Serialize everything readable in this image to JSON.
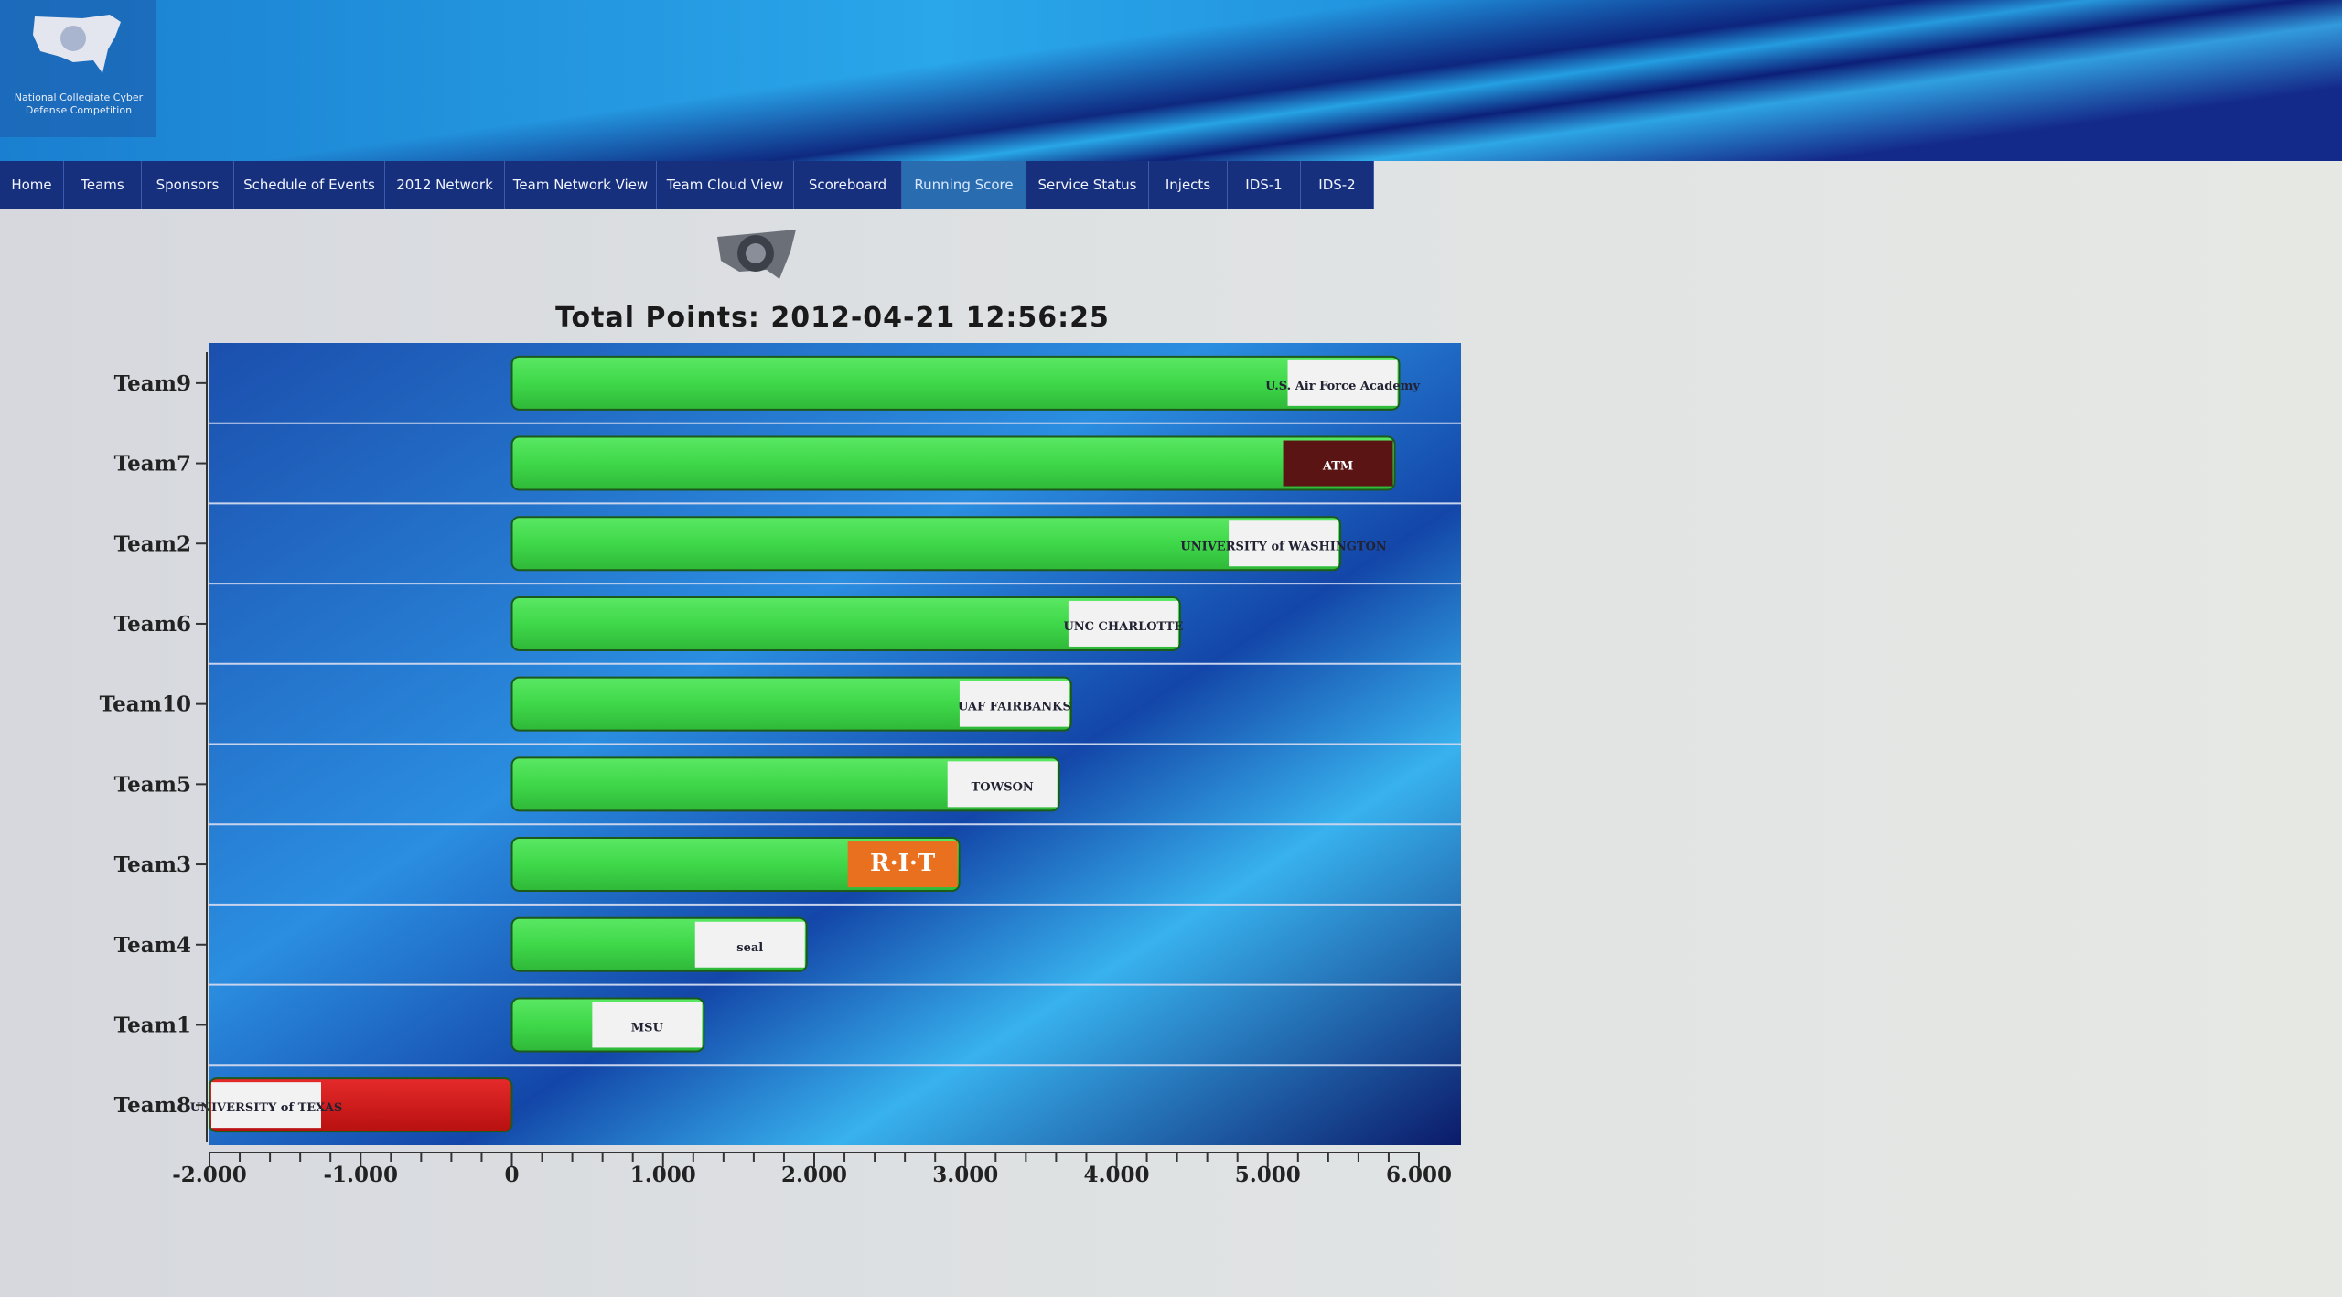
{
  "header": {
    "logo_text": "National Collegiate Cyber Defense Competition"
  },
  "nav": {
    "items": [
      {
        "label": "Home"
      },
      {
        "label": "Teams"
      },
      {
        "label": "Sponsors"
      },
      {
        "label": "Schedule of Events"
      },
      {
        "label": "2012 Network"
      },
      {
        "label": "Team Network View"
      },
      {
        "label": "Team Cloud View"
      },
      {
        "label": "Scoreboard"
      },
      {
        "label": "Running Score",
        "active": true
      },
      {
        "label": "Service Status"
      },
      {
        "label": "Injects"
      },
      {
        "label": "IDS-1"
      },
      {
        "label": "IDS-2"
      }
    ]
  },
  "chart_data": {
    "type": "bar",
    "orientation": "horizontal",
    "title": "Total Points: 2012-04-21 12:56:25",
    "categories": [
      "Team9",
      "Team7",
      "Team2",
      "Team6",
      "Team10",
      "Team5",
      "Team3",
      "Team4",
      "Team1",
      "Team8"
    ],
    "values": [
      5870,
      5840,
      5480,
      4420,
      3700,
      3620,
      2960,
      1950,
      1270,
      -2000
    ],
    "logos": [
      "U.S. Air Force Academy",
      "ATM",
      "UNIVERSITY of WASHINGTON",
      "UNC CHARLOTTE",
      "UAF FAIRBANKS",
      "TOWSON",
      "R·I·T",
      "seal",
      "MSU",
      "UNIVERSITY of TEXAS"
    ],
    "xlim": [
      -2000,
      6000
    ],
    "xticks": [
      "-2.000",
      "-1.000",
      "0",
      "1.000",
      "2.000",
      "3.000",
      "4.000",
      "5.000",
      "6.000"
    ],
    "xtick_values": [
      -2000,
      -1000,
      0,
      1000,
      2000,
      3000,
      4000,
      5000,
      6000
    ],
    "grid": "horizontal row separators",
    "colors": {
      "positive": "#3fd84a",
      "negative": "#d41818",
      "plot_bg": "#1a5ab8"
    }
  }
}
